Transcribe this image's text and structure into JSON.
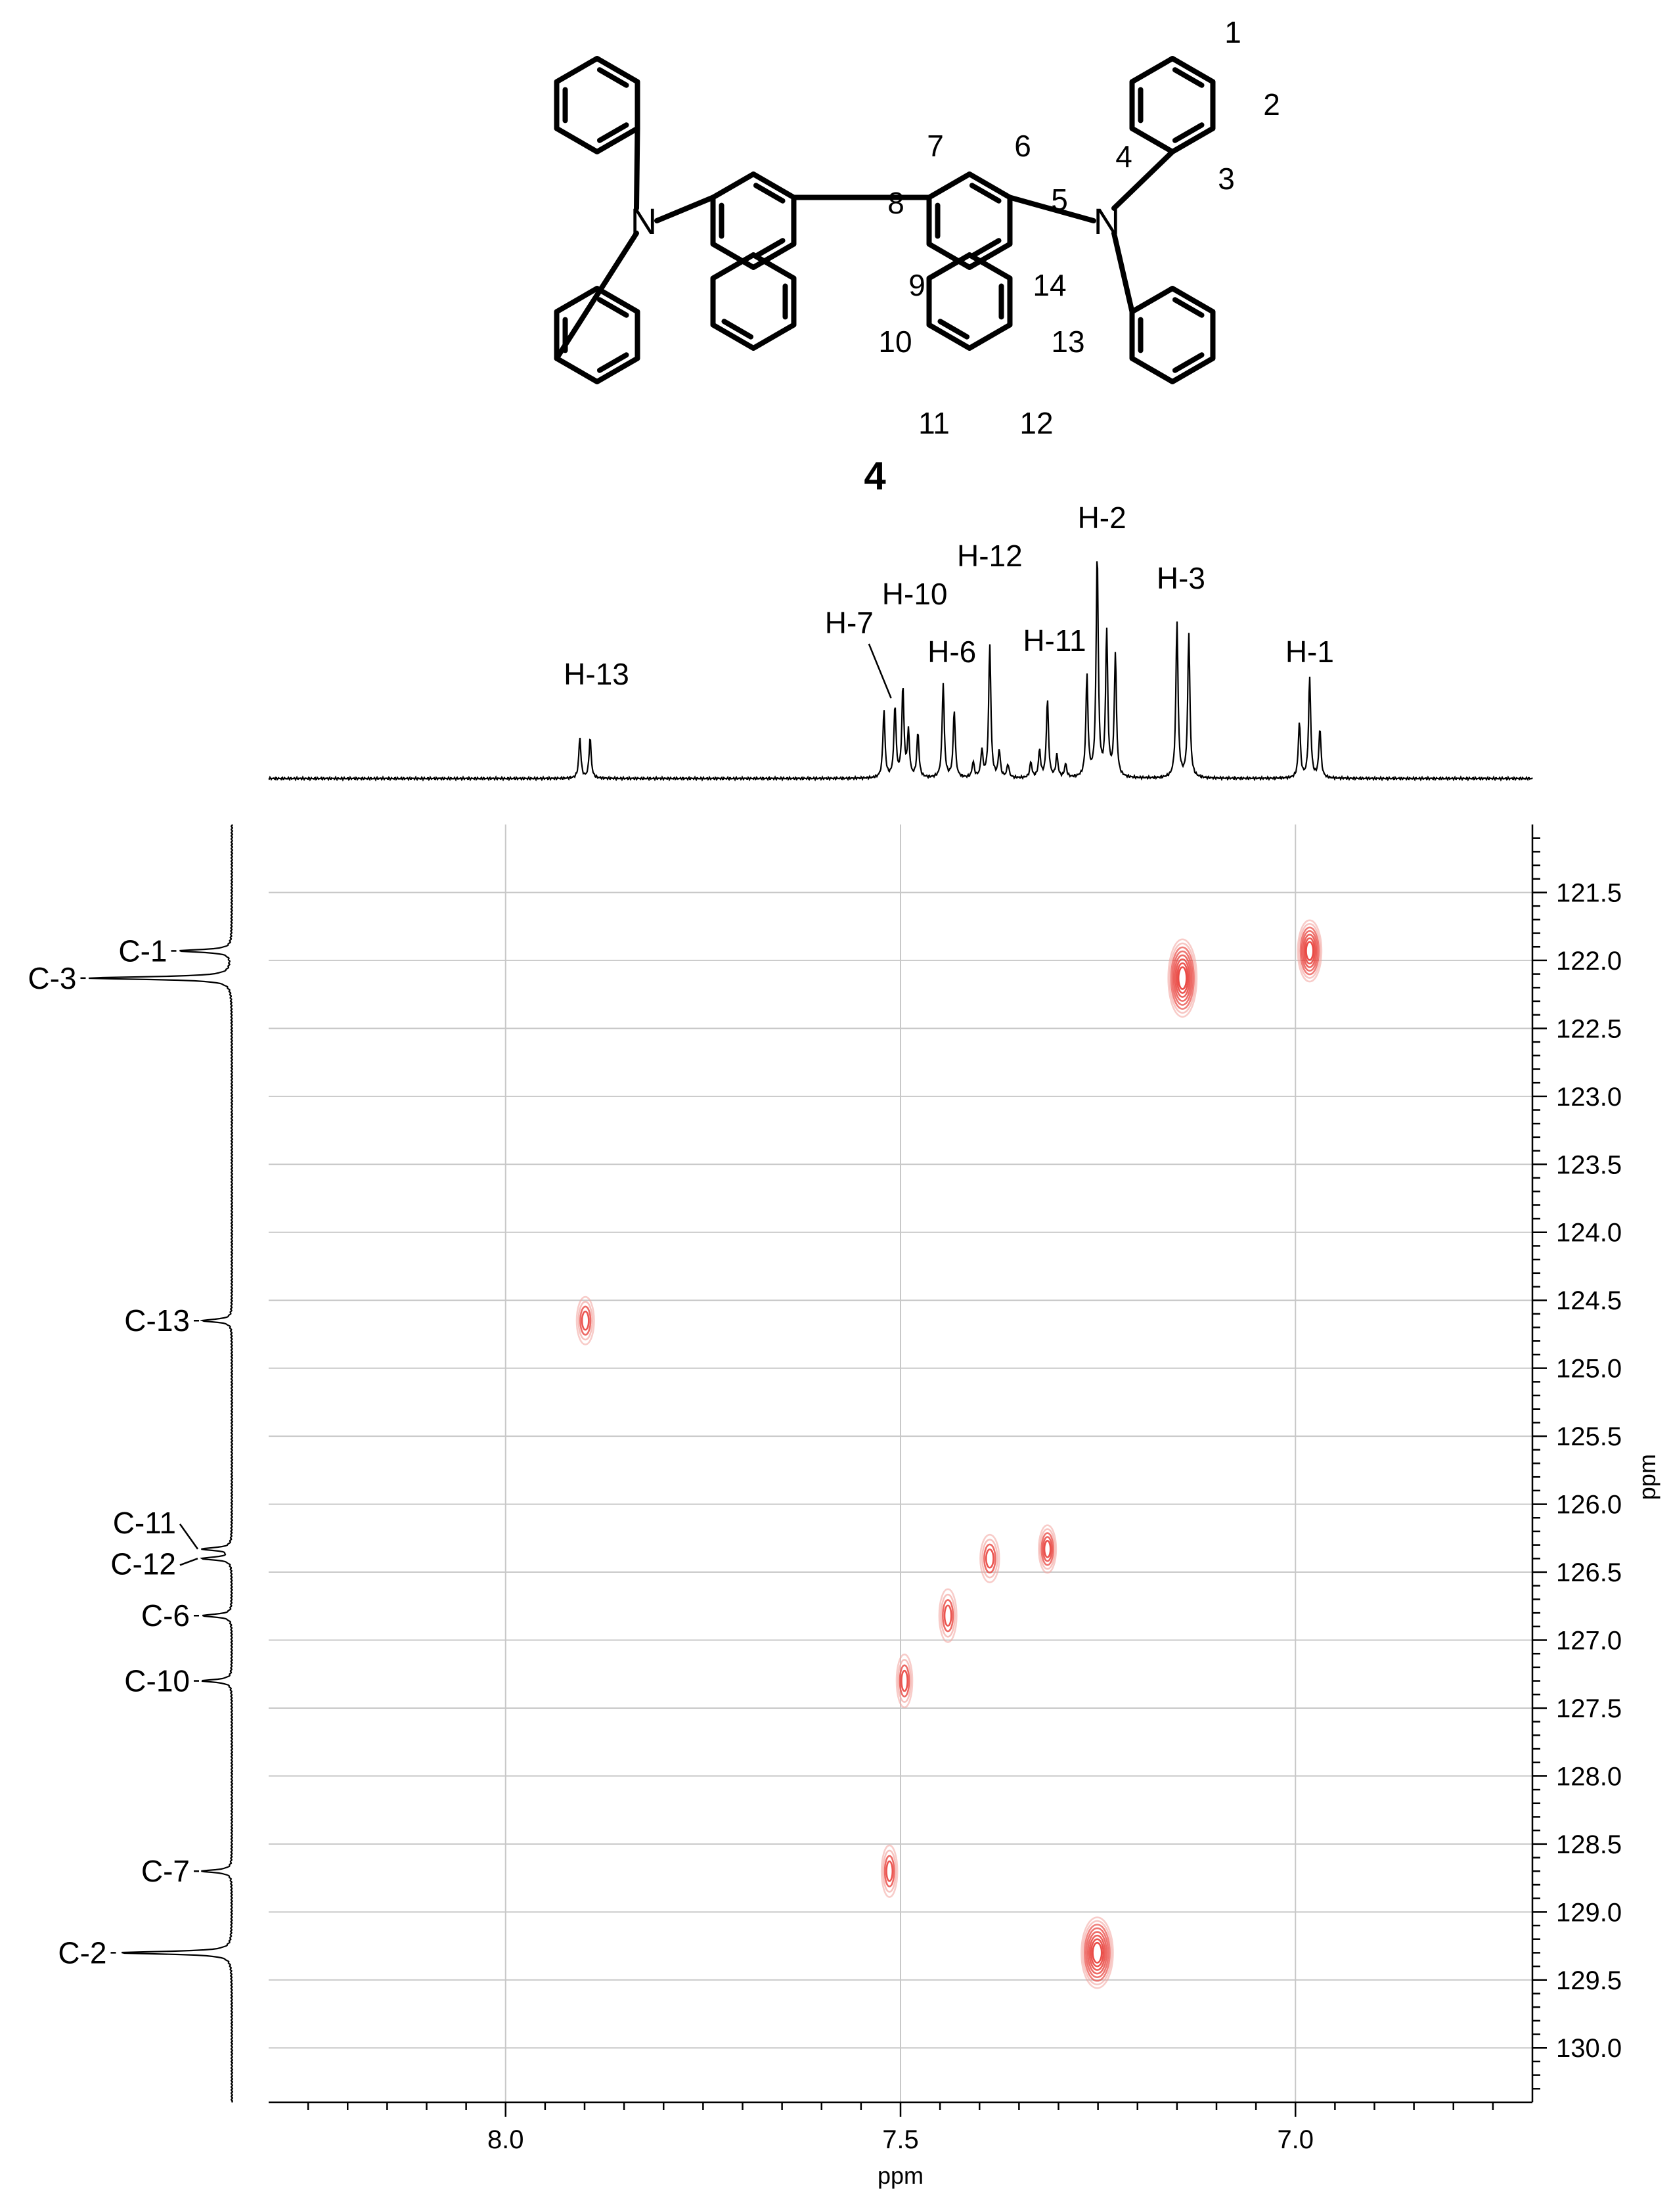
{
  "molecule": {
    "compound_label": "4",
    "atoms": {
      "N_left": "N",
      "N_right": "N"
    },
    "position_labels": [
      "1",
      "2",
      "3",
      "4",
      "5",
      "6",
      "7",
      "8",
      "9",
      "10",
      "11",
      "12",
      "13",
      "14"
    ]
  },
  "chart_data": {
    "type": "heatmap",
    "subtype": "2D NMR HSQC (1H-13C correlation)",
    "title": "",
    "xlabel": "ppm",
    "ylabel": "ppm",
    "x_reversed": true,
    "y_increases_downward": true,
    "xlim": [
      8.3,
      6.7
    ],
    "ylim": [
      121.0,
      130.4
    ],
    "x_ticks": [
      8.0,
      7.5,
      7.0
    ],
    "x_tick_labels": [
      "8.0",
      "7.5",
      "7.0"
    ],
    "x_minor_step": 0.05,
    "y_ticks": [
      121.5,
      122.0,
      122.5,
      123.0,
      123.5,
      124.0,
      124.5,
      125.0,
      125.5,
      126.0,
      126.5,
      127.0,
      127.5,
      128.0,
      128.5,
      129.0,
      129.5,
      130.0
    ],
    "y_tick_labels": [
      "121.5",
      "122.0",
      "122.5",
      "123.0",
      "123.5",
      "124.0",
      "124.5",
      "125.0",
      "125.5",
      "126.0",
      "126.5",
      "127.0",
      "127.5",
      "128.0",
      "128.5",
      "129.0",
      "129.5",
      "130.0"
    ],
    "y_minor_step": 0.1,
    "grid": true,
    "proton_spectrum": {
      "peaks": [
        {
          "label": "H-13",
          "lines": [
            {
              "ppm": 7.906,
              "h": 0.18
            },
            {
              "ppm": 7.893,
              "h": 0.18
            }
          ],
          "label_ppm": 7.885,
          "label_h": 0.42
        },
        {
          "label": "H-7",
          "lines": [
            {
              "ppm": 7.521,
              "h": 0.3
            },
            {
              "ppm": 7.507,
              "h": 0.32
            }
          ],
          "label_ppm": 7.565,
          "label_h": 0.65,
          "leader": [
            7.512,
            0.36
          ]
        },
        {
          "label": "H-10",
          "lines": [
            {
              "ppm": 7.497,
              "h": 0.4
            },
            {
              "ppm": 7.49,
              "h": 0.2
            },
            {
              "ppm": 7.478,
              "h": 0.2
            }
          ],
          "label_ppm": 7.482,
          "label_h": 0.78
        },
        {
          "label": "H-6",
          "lines": [
            {
              "ppm": 7.446,
              "h": 0.42
            },
            {
              "ppm": 7.432,
              "h": 0.3
            }
          ],
          "label_ppm": 7.435,
          "label_h": 0.52
        },
        {
          "label": "H-12",
          "lines": [
            {
              "ppm": 7.408,
              "h": 0.07
            },
            {
              "ppm": 7.397,
              "h": 0.12
            },
            {
              "ppm": 7.387,
              "h": 0.6
            },
            {
              "ppm": 7.375,
              "h": 0.12
            },
            {
              "ppm": 7.364,
              "h": 0.06
            }
          ],
          "label_ppm": 7.387,
          "label_h": 0.95
        },
        {
          "label": "H-11",
          "lines": [
            {
              "ppm": 7.335,
              "h": 0.07
            },
            {
              "ppm": 7.324,
              "h": 0.12
            },
            {
              "ppm": 7.314,
              "h": 0.35
            },
            {
              "ppm": 7.302,
              "h": 0.1
            },
            {
              "ppm": 7.291,
              "h": 0.06
            }
          ],
          "label_ppm": 7.305,
          "label_h": 0.57
        },
        {
          "label": "H-2",
          "lines": [
            {
              "ppm": 7.264,
              "h": 0.45
            },
            {
              "ppm": 7.251,
              "h": 1.0
            },
            {
              "ppm": 7.239,
              "h": 0.65
            },
            {
              "ppm": 7.228,
              "h": 0.55
            }
          ],
          "label_ppm": 7.245,
          "label_h": 1.12
        },
        {
          "label": "H-3",
          "lines": [
            {
              "ppm": 7.15,
              "h": 0.7
            },
            {
              "ppm": 7.135,
              "h": 0.65
            }
          ],
          "label_ppm": 7.145,
          "label_h": 0.85
        },
        {
          "label": "H-1",
          "lines": [
            {
              "ppm": 6.995,
              "h": 0.25
            },
            {
              "ppm": 6.982,
              "h": 0.45
            },
            {
              "ppm": 6.969,
              "h": 0.22
            }
          ],
          "label_ppm": 6.982,
          "label_h": 0.52
        }
      ]
    },
    "carbon_spectrum": {
      "peaks": [
        {
          "label": "C-1",
          "ppm": 121.93,
          "h": 0.35
        },
        {
          "label": "C-3",
          "ppm": 122.13,
          "h": 0.95
        },
        {
          "label": "C-13",
          "ppm": 124.65,
          "h": 0.2
        },
        {
          "label": "C-11",
          "ppm": 126.33,
          "h": 0.2
        },
        {
          "label": "C-12",
          "ppm": 126.4,
          "h": 0.2
        },
        {
          "label": "C-6",
          "ppm": 126.82,
          "h": 0.2
        },
        {
          "label": "C-10",
          "ppm": 127.3,
          "h": 0.2
        },
        {
          "label": "C-7",
          "ppm": 128.7,
          "h": 0.2
        },
        {
          "label": "C-2",
          "ppm": 129.3,
          "h": 0.75
        }
      ]
    },
    "cross_peaks": [
      {
        "h": 7.899,
        "c": 124.65,
        "intensity": 0.45,
        "width": 0.011,
        "span": 0.35
      },
      {
        "h": 7.495,
        "c": 127.3,
        "intensity": 0.5,
        "width": 0.01,
        "span": 0.39
      },
      {
        "h": 7.514,
        "c": 128.7,
        "intensity": 0.5,
        "width": 0.01,
        "span": 0.38
      },
      {
        "h": 7.44,
        "c": 126.82,
        "intensity": 0.55,
        "width": 0.011,
        "span": 0.39
      },
      {
        "h": 7.387,
        "c": 126.4,
        "intensity": 0.55,
        "width": 0.012,
        "span": 0.35
      },
      {
        "h": 7.314,
        "c": 126.33,
        "intensity": 0.6,
        "width": 0.011,
        "span": 0.35
      },
      {
        "h": 7.143,
        "c": 122.13,
        "intensity": 1.0,
        "width": 0.018,
        "span": 0.57
      },
      {
        "h": 6.982,
        "c": 121.93,
        "intensity": 0.85,
        "width": 0.015,
        "span": 0.45
      },
      {
        "h": 7.251,
        "c": 129.3,
        "intensity": 1.0,
        "width": 0.02,
        "span": 0.52
      }
    ]
  },
  "colors": {
    "contour": "#e8403a",
    "contour_light": "#f2a29d",
    "grid": "#c8c8c8",
    "axis": "#000000"
  }
}
